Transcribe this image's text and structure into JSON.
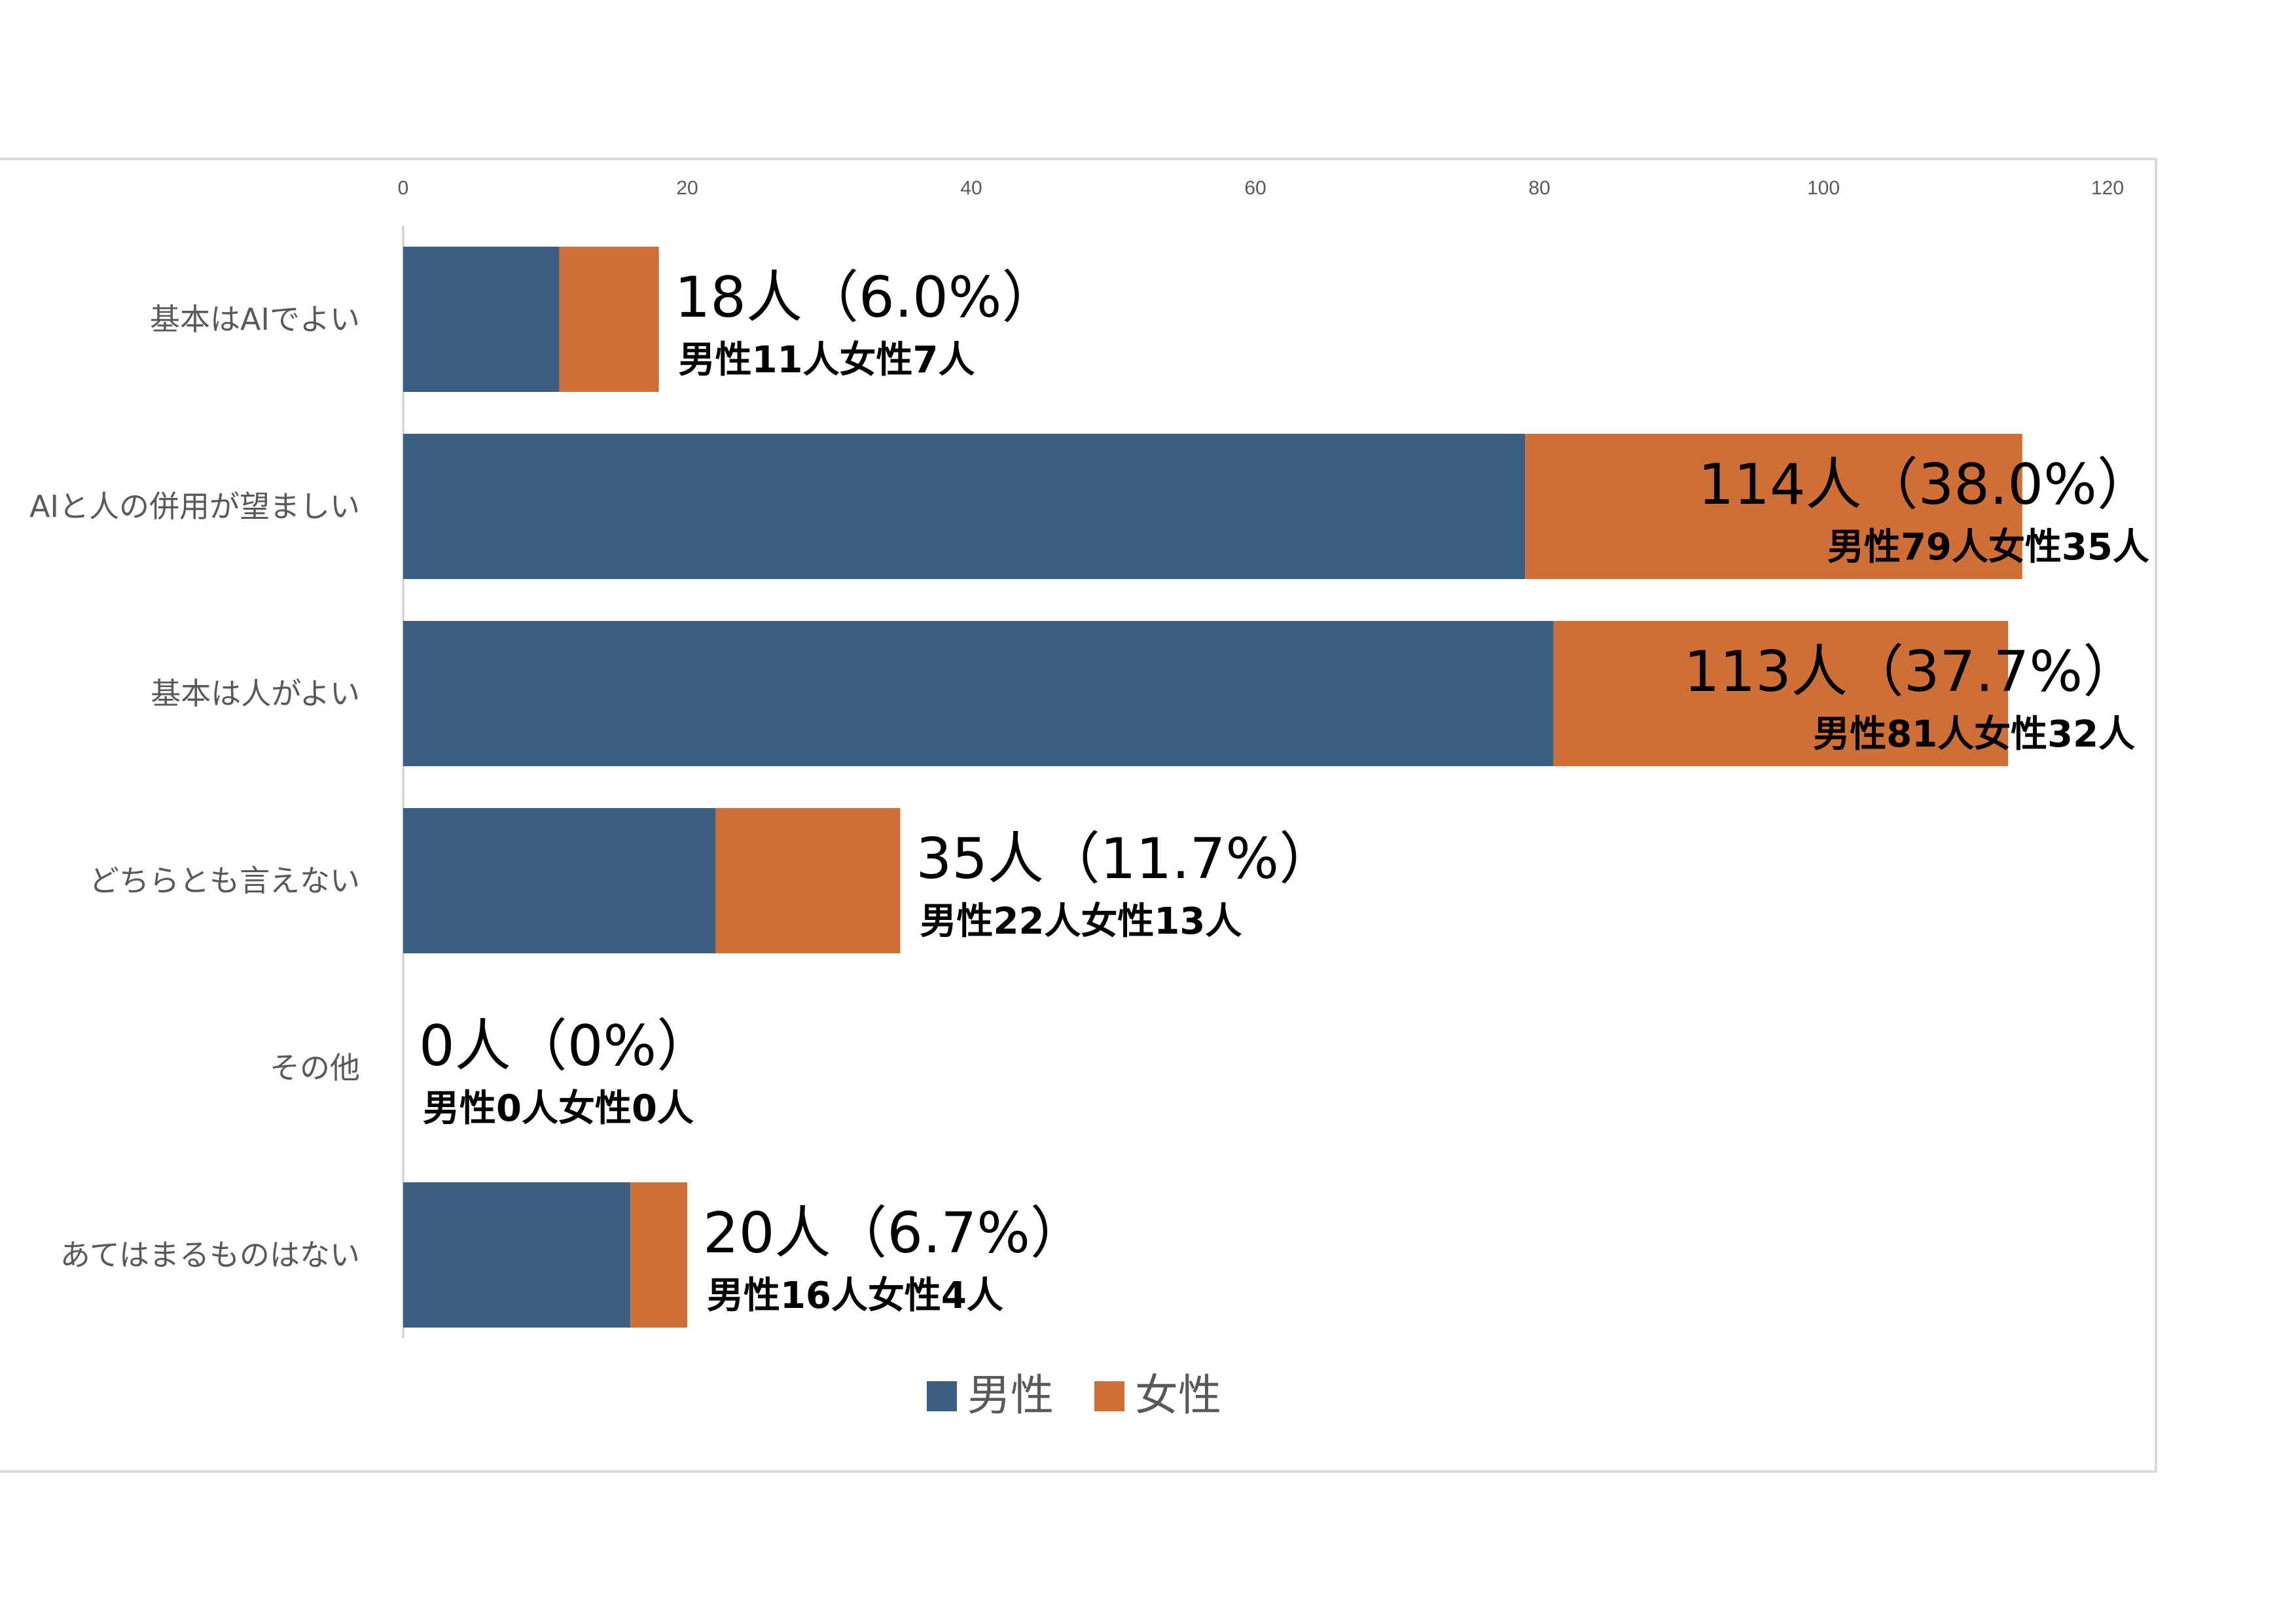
{
  "chart_data": {
    "type": "bar",
    "orientation": "horizontal",
    "stacked": true,
    "categories": [
      "基本はAIでよい",
      "AIと人の併用が望ましい",
      "基本は人がよい",
      "どちらとも言えない",
      "その他",
      "あてはまるものはない"
    ],
    "series": [
      {
        "name": "男性",
        "color": "#3a5f80",
        "values": [
          11,
          79,
          81,
          22,
          0,
          16
        ]
      },
      {
        "name": "女性",
        "color": "#cf6f38",
        "values": [
          7,
          35,
          32,
          13,
          0,
          4
        ]
      }
    ],
    "data_labels": [
      {
        "main": "18人（6.0%）",
        "sub": "男性11人女性7人"
      },
      {
        "main": "114人（38.0%）",
        "sub": "男性79人女性35人"
      },
      {
        "main": "113人（37.7%）",
        "sub": "男性81人女性32人"
      },
      {
        "main": "35人（11.7%）",
        "sub": "男性22人女性13人"
      },
      {
        "main": "0人（0%）",
        "sub": "男性0人女性0人"
      },
      {
        "main": "20人（6.7%）",
        "sub": "男性16人女性4人"
      }
    ],
    "xlim": [
      0,
      120
    ],
    "xticks": [
      0,
      20,
      40,
      60,
      80,
      100,
      120
    ],
    "axis_position": "top",
    "grid": false,
    "legend": "bottom",
    "title": "",
    "xlabel": "",
    "ylabel": ""
  }
}
